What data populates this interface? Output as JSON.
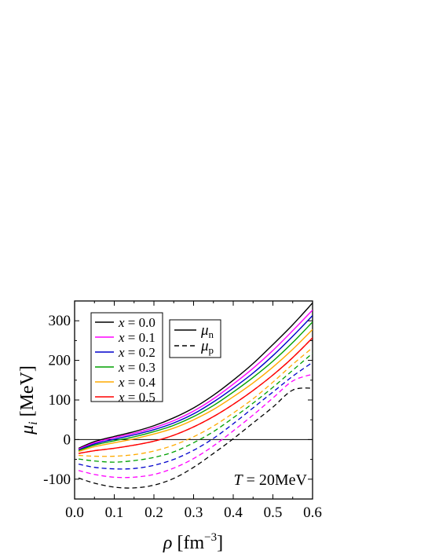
{
  "chart_data": {
    "type": "line",
    "xlabel": "ρ [fm⁻³]",
    "ylabel": "μᵢ [MeV]",
    "xlim": [
      0.0,
      0.6
    ],
    "ylim": [
      -150,
      350
    ],
    "x_ticks": [
      "0.0",
      "0.1",
      "0.2",
      "0.3",
      "0.4",
      "0.5",
      "0.6"
    ],
    "y_ticks": [
      "-100",
      "0",
      "100",
      "200",
      "300"
    ],
    "annotation": "T = 20MeV",
    "legend_x_label": "x",
    "legend_style": [
      {
        "name": "μn",
        "style": "solid"
      },
      {
        "name": "μp",
        "style": "dashed"
      }
    ],
    "x": [
      0.01,
      0.05,
      0.1,
      0.15,
      0.2,
      0.25,
      0.3,
      0.35,
      0.4,
      0.45,
      0.5,
      0.55,
      0.6
    ],
    "series": [
      {
        "name": "x = 0.0",
        "color": "#000000",
        "mu_n": [
          -22,
          -5,
          8,
          20,
          35,
          55,
          80,
          112,
          150,
          192,
          240,
          290,
          345
        ],
        "mu_p": [
          -97,
          -110,
          -120,
          -122,
          -115,
          -98,
          -70,
          -35,
          2,
          42,
          82,
          125,
          130
        ]
      },
      {
        "name": "x = 0.1",
        "color": "#ff00ff",
        "mu_n": [
          -24,
          -8,
          5,
          16,
          30,
          48,
          72,
          103,
          140,
          180,
          225,
          275,
          327
        ],
        "mu_p": [
          -78,
          -88,
          -95,
          -95,
          -88,
          -72,
          -48,
          -16,
          22,
          62,
          105,
          148,
          165
        ]
      },
      {
        "name": "x = 0.2",
        "color": "#0000cc",
        "mu_n": [
          -26,
          -11,
          1,
          12,
          25,
          42,
          65,
          95,
          130,
          168,
          212,
          261,
          313
        ],
        "mu_p": [
          -62,
          -70,
          -74,
          -73,
          -65,
          -50,
          -27,
          3,
          40,
          80,
          120,
          160,
          195
        ]
      },
      {
        "name": "x = 0.3",
        "color": "#00a000",
        "mu_n": [
          -28,
          -14,
          -3,
          7,
          20,
          36,
          58,
          86,
          120,
          157,
          198,
          245,
          297
        ],
        "mu_p": [
          -49,
          -54,
          -57,
          -53,
          -45,
          -31,
          -8,
          20,
          55,
          92,
          132,
          175,
          218
        ]
      },
      {
        "name": "x = 0.4",
        "color": "#ffaa00",
        "mu_n": [
          -30,
          -18,
          -8,
          2,
          14,
          29,
          50,
          76,
          108,
          143,
          183,
          228,
          278
        ],
        "mu_p": [
          -40,
          -42,
          -42,
          -38,
          -29,
          -14,
          7,
          34,
          67,
          103,
          145,
          190,
          232
        ]
      },
      {
        "name": "x = 0.5",
        "color": "#ff0000",
        "mu_n": [
          -35,
          -28,
          -22,
          -14,
          -4,
          11,
          32,
          58,
          89,
          124,
          163,
          207,
          257
        ],
        "mu_p": [
          -35,
          -28,
          -22,
          -14,
          -4,
          11,
          32,
          58,
          89,
          124,
          163,
          207,
          257
        ]
      }
    ]
  }
}
